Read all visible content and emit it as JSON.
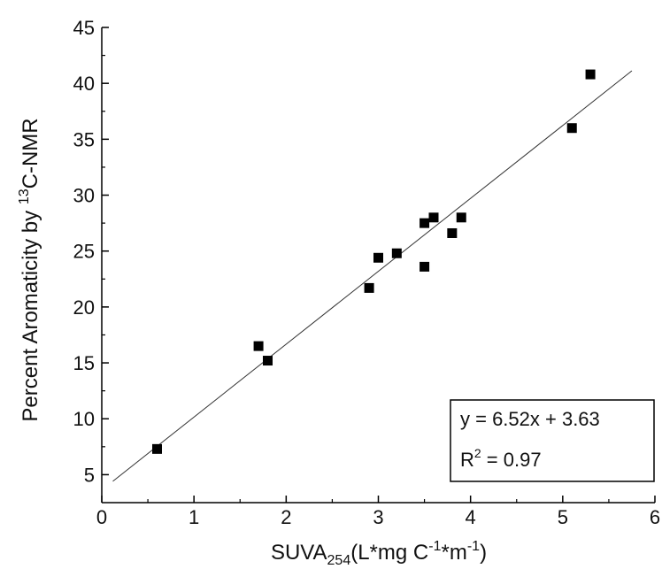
{
  "chart_data": {
    "type": "scatter",
    "title": "",
    "xlabel": {
      "main": "SUVA",
      "sub": "254",
      "unit_open": "(L*mg C",
      "sup1": "-1",
      "unit_mid": "*m",
      "sup2": "-1",
      "unit_close": ")"
    },
    "ylabel": {
      "prefix": "Percent Aromaticity by ",
      "sup": "13",
      "suffix": "C-NMR"
    },
    "xlim": [
      0,
      6
    ],
    "ylim": [
      2.5,
      45
    ],
    "x_ticks": [
      0,
      1,
      2,
      3,
      4,
      5,
      6
    ],
    "y_ticks": [
      5,
      10,
      15,
      20,
      25,
      30,
      35,
      40,
      45
    ],
    "points": [
      {
        "x": 0.6,
        "y": 7.3
      },
      {
        "x": 1.7,
        "y": 16.5
      },
      {
        "x": 1.8,
        "y": 15.2
      },
      {
        "x": 2.9,
        "y": 21.7
      },
      {
        "x": 3.0,
        "y": 24.4
      },
      {
        "x": 3.2,
        "y": 24.8
      },
      {
        "x": 3.5,
        "y": 27.5
      },
      {
        "x": 3.5,
        "y": 23.6
      },
      {
        "x": 3.6,
        "y": 28.0
      },
      {
        "x": 3.8,
        "y": 26.6
      },
      {
        "x": 3.9,
        "y": 28.0
      },
      {
        "x": 5.1,
        "y": 36.0
      },
      {
        "x": 5.3,
        "y": 40.8
      }
    ],
    "fit": {
      "slope": 6.52,
      "intercept": 3.63,
      "x_range": [
        0.12,
        5.75
      ]
    },
    "legend": {
      "equation": "y = 6.52x + 3.63",
      "r2_prefix": "R",
      "r2_sup": "2",
      "r2_value": " = 0.97",
      "position": "bottom-right"
    },
    "grid": false,
    "colors": {
      "marker": "#000000",
      "line": "#333333",
      "axis": "#000000"
    }
  }
}
